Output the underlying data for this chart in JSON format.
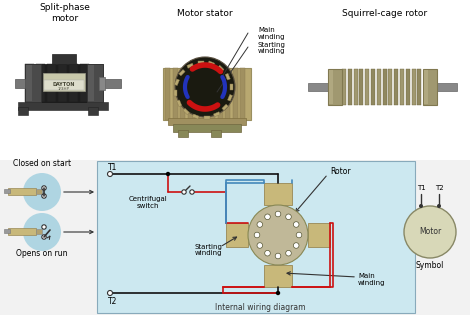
{
  "bg_color": "#f2f2f2",
  "white": "#ffffff",
  "diagram_bg": "#cce8f0",
  "tan": "#c8b87a",
  "tan2": "#b8a86a",
  "dark_gray": "#2a2a2a",
  "med_gray": "#555555",
  "light_gray": "#888888",
  "motor_red": "#cc2222",
  "motor_blue": "#3366bb",
  "red_wire": "#cc1111",
  "blue_wire": "#4488bb",
  "black_wire": "#111111",
  "switch_blue": "#99ccdd",
  "rotor_tan": "#c0b898",
  "stator_tan": "#b8a870",
  "font_size_title": 6.5,
  "font_size_label": 5.5,
  "font_size_small": 5.0,
  "top_labels": [
    "Split-phase\nmotor",
    "Motor stator",
    "Squirrel-cage rotor"
  ],
  "circuit_labels": [
    "T1",
    "T2",
    "Centrifugal\nswitch",
    "Rotor",
    "Starting\nwinding",
    "Main\nwinding"
  ],
  "symbol_labels": [
    "T1",
    "T2",
    "Motor",
    "Symbol"
  ],
  "section_labels": [
    "Closed on start",
    "Opens on run",
    "Internal wiring diagram"
  ]
}
